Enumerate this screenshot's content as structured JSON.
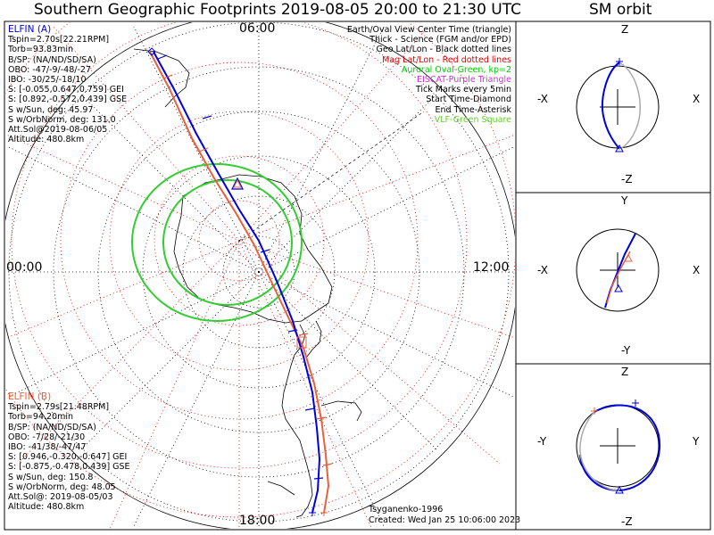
{
  "title": "Southern Geographic Footprints 2019-08-05 20:00 to 21:30 UTC",
  "orbit_title": "SM orbit",
  "time_labels": {
    "top": "06:00",
    "left": "00:00",
    "right": "12:00",
    "bottom": "18:00"
  },
  "elfin_a": {
    "name": "ELFIN (A)",
    "lines": [
      "Tspin=2.70s[22.21RPM]",
      "Torb=93.83min",
      "B/SP: (NA/ND/SD/SA)",
      "OBO: -47/-9/-48/-27",
      "IBO: -30/25/-18/10",
      "S: [-0.055,0.647,0.759] GEI",
      "S: [0.892,-0.572,0.439] GSE",
      "S w/Sun, deg: 45.97",
      "S w/OrbNorm, deg: 131.0",
      "Att.Sol@2019-08-06/05",
      "Altitude: 480.8km"
    ],
    "color": "#0000dd"
  },
  "elfin_b": {
    "name": "ELFIN (B)",
    "lines": [
      "Tspin=2.79s[21.48RPM]",
      "Torb=94.20min",
      "B/SP: (NA/ND/SD/SA)",
      "OBO: -7/28/-21/30",
      "IBO: -41/38/-47/47",
      "S: [0.946,-0.320,-0.647] GEI",
      "S: [-0.875,-0.478,0.439] GSE",
      "S w/Sun, deg: 150.8",
      "S w/OrbNorm, deg: 48.05",
      "Att.Sol@: 2019-08-05/03",
      "Altitude: 480.8km"
    ],
    "color": "#e8603c"
  },
  "legend": [
    {
      "text": "Earth/Oval View Center Time (triangle)",
      "color": "#000000"
    },
    {
      "text": "Thick - Science (FGM and/or EPD)",
      "color": "#000000"
    },
    {
      "text": "Geo Lat/Lon - Black dotted lines",
      "color": "#000000"
    },
    {
      "text": "Mag Lat/Lon - Red dotted lines",
      "color": "#dd0000"
    },
    {
      "text": "Auroral Oval-Green, kp=2",
      "color": "#00cc00"
    },
    {
      "text": "EISCAT-Purple Triangle",
      "color": "#cc33cc"
    },
    {
      "text": "Tick Marks every 5min",
      "color": "#000000"
    },
    {
      "text": "Start Time-Diamond",
      "color": "#000000"
    },
    {
      "text": "End Time-Asterisk",
      "color": "#000000"
    },
    {
      "text": "VLF-Green Square",
      "color": "#66cc33"
    }
  ],
  "credits": {
    "model": "Tsyganenko-1996",
    "created": "Created: Wed Jan 25 10:06:00 2023"
  },
  "orbit_panels": [
    {
      "top": "Z",
      "bottom": "-Z",
      "left": "-X",
      "right": "X"
    },
    {
      "top": "Y",
      "bottom": "-Y",
      "left": "-X",
      "right": "X"
    },
    {
      "top": "Z",
      "bottom": "-Z",
      "left": "-Y",
      "right": "Y"
    }
  ]
}
